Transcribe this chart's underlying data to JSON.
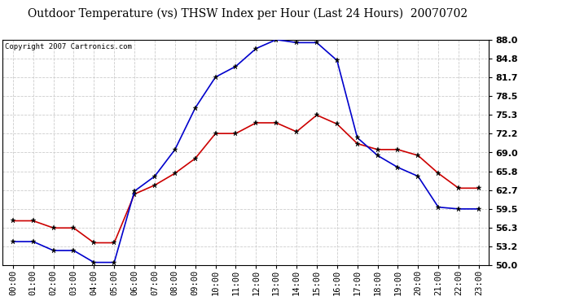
{
  "title": "Outdoor Temperature (vs) THSW Index per Hour (Last 24 Hours)  20070702",
  "copyright": "Copyright 2007 Cartronics.com",
  "hours": [
    "00:00",
    "01:00",
    "02:00",
    "03:00",
    "04:00",
    "05:00",
    "06:00",
    "07:00",
    "08:00",
    "09:00",
    "10:00",
    "11:00",
    "12:00",
    "13:00",
    "14:00",
    "15:00",
    "16:00",
    "17:00",
    "18:00",
    "19:00",
    "20:00",
    "21:00",
    "22:00",
    "23:00"
  ],
  "temp_red": [
    57.5,
    57.5,
    56.3,
    56.3,
    53.8,
    53.8,
    62.0,
    63.5,
    65.5,
    68.0,
    72.2,
    72.2,
    74.0,
    74.0,
    72.5,
    75.3,
    73.8,
    70.5,
    69.5,
    69.5,
    68.5,
    65.5,
    63.0,
    63.0
  ],
  "thsw_blue": [
    54.0,
    54.0,
    52.5,
    52.5,
    50.5,
    50.5,
    62.5,
    65.0,
    69.5,
    76.5,
    81.7,
    83.5,
    86.5,
    88.0,
    87.5,
    87.5,
    84.5,
    71.5,
    68.5,
    66.5,
    65.0,
    59.8,
    59.5,
    59.5
  ],
  "ylim": [
    50.0,
    88.0
  ],
  "yticks": [
    50.0,
    53.2,
    56.3,
    59.5,
    62.7,
    65.8,
    69.0,
    72.2,
    75.3,
    78.5,
    81.7,
    84.8,
    88.0
  ],
  "bg_color": "#ffffff",
  "grid_color": "#cccccc",
  "red_color": "#cc0000",
  "blue_color": "#0000cc",
  "title_fontsize": 10,
  "copyright_fontsize": 6.5,
  "tick_fontsize": 7.5,
  "ytick_fontsize": 8
}
